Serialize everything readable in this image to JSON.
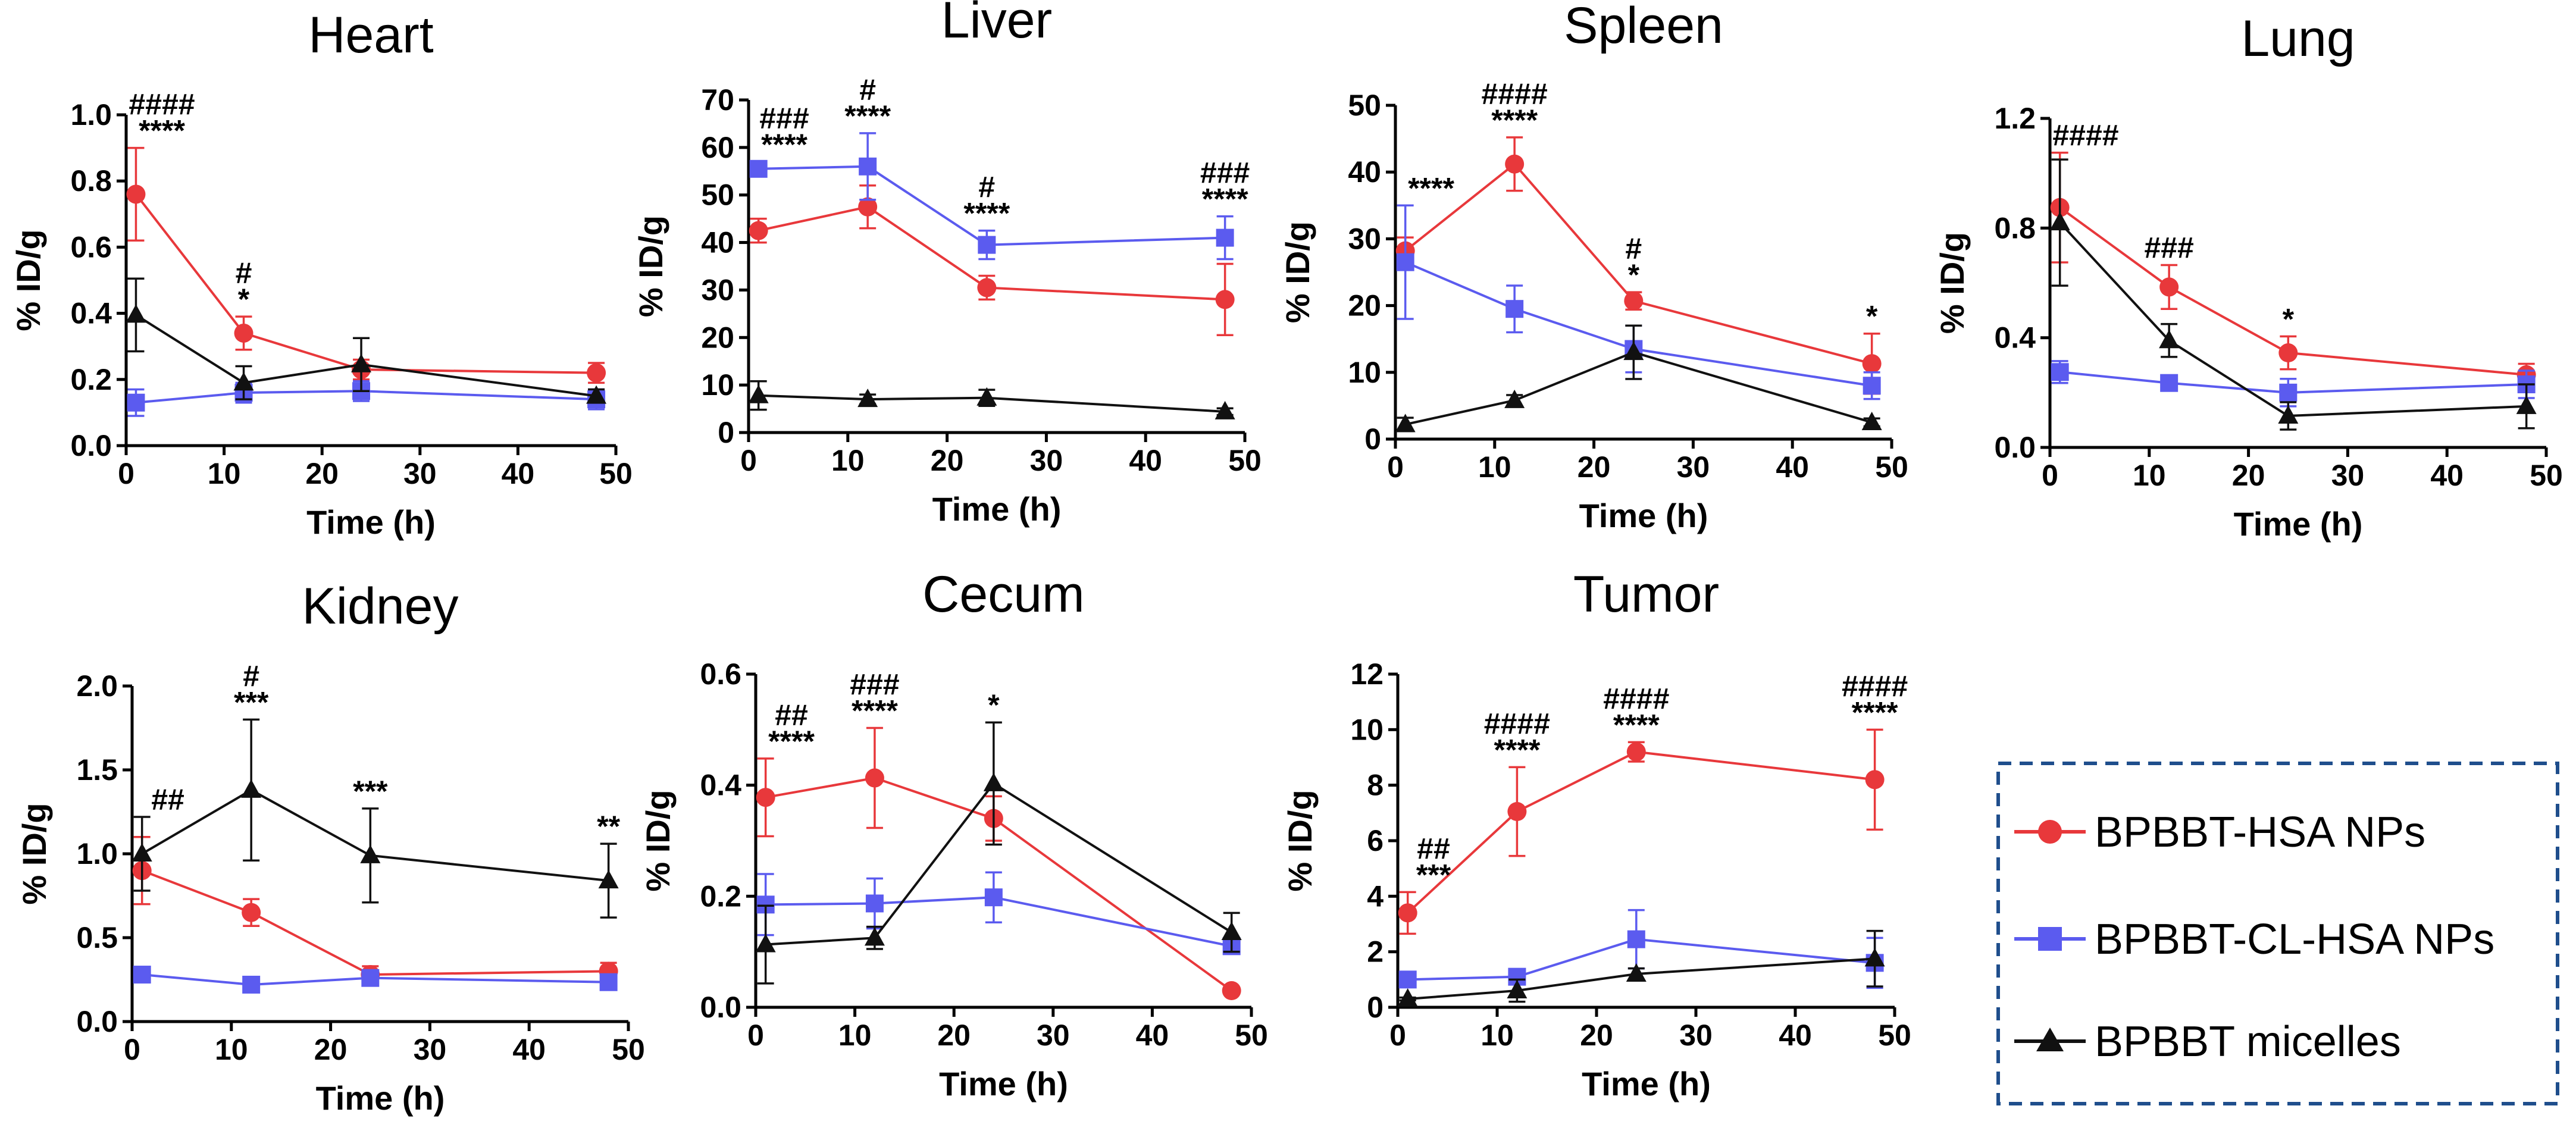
{
  "colors": {
    "red": "#E8383B",
    "blue": "#5B5BEF",
    "black": "#111111",
    "legend_border": "#1F4E8C"
  },
  "legend": [
    {
      "label": "BPBBT-HSA NPs",
      "marker": "circle",
      "color": "#E8383B"
    },
    {
      "label": "BPBBT-CL-HSA NPs",
      "marker": "square",
      "color": "#5B5BEF"
    },
    {
      "label": "BPBBT micelles",
      "marker": "triangle",
      "color": "#111111"
    }
  ],
  "chart_data": [
    {
      "type": "line",
      "title": "Heart",
      "xlabel": "Time (h)",
      "ylabel": "% ID/g",
      "x": [
        1,
        12,
        24,
        48
      ],
      "xlim": [
        0,
        50
      ],
      "ylim": [
        0,
        1.0
      ],
      "xticks": [
        "0",
        "10",
        "20",
        "30",
        "40",
        "50"
      ],
      "yticks": [
        "0.0",
        "0.2",
        "0.4",
        "0.6",
        "0.8",
        "1.0"
      ],
      "series": [
        {
          "name": "BPBBT-HSA NPs",
          "values": [
            0.76,
            0.34,
            0.23,
            0.22
          ],
          "errors": [
            0.14,
            0.05,
            0.03,
            0.03
          ]
        },
        {
          "name": "BPBBT-CL-HSA NPs",
          "values": [
            0.13,
            0.16,
            0.165,
            0.14
          ],
          "errors": [
            0.04,
            0.03,
            0.03,
            0.03
          ]
        },
        {
          "name": "BPBBT micelles",
          "values": [
            0.395,
            0.19,
            0.245,
            0.15
          ],
          "errors": [
            0.11,
            0.05,
            0.08,
            0.02
          ]
        }
      ],
      "annotations": [
        {
          "x": 1,
          "lines": [
            "####",
            "****"
          ]
        },
        {
          "x": 12,
          "lines": [
            "#",
            "*"
          ]
        }
      ]
    },
    {
      "type": "line",
      "title": "Liver",
      "xlabel": "Time (h)",
      "ylabel": "% ID/g",
      "x": [
        1,
        12,
        24,
        48
      ],
      "xlim": [
        0,
        50
      ],
      "ylim": [
        0,
        70
      ],
      "xticks": [
        "0",
        "10",
        "20",
        "30",
        "40",
        "50"
      ],
      "yticks": [
        "0",
        "10",
        "20",
        "30",
        "40",
        "50",
        "60",
        "70"
      ],
      "series": [
        {
          "name": "BPBBT-HSA NPs",
          "values": [
            42.5,
            47.5,
            30.5,
            28
          ],
          "errors": [
            2.5,
            4.5,
            2.5,
            7.5
          ]
        },
        {
          "name": "BPBBT-CL-HSA NPs",
          "values": [
            55.5,
            56,
            39.5,
            41
          ],
          "errors": [
            1.5,
            7,
            3,
            4.5
          ]
        },
        {
          "name": "BPBBT micelles",
          "values": [
            7.8,
            7,
            7.3,
            4.4
          ],
          "errors": [
            3,
            1,
            1.7,
            0.7
          ]
        }
      ],
      "annotations": [
        {
          "x": 1,
          "lines": [
            "###",
            "****"
          ]
        },
        {
          "x": 12,
          "lines": [
            "#",
            "****"
          ]
        },
        {
          "x": 24,
          "lines": [
            "#",
            "****"
          ]
        },
        {
          "x": 48,
          "lines": [
            "###",
            "****"
          ]
        }
      ]
    },
    {
      "type": "line",
      "title": "Spleen",
      "xlabel": "Time (h)",
      "ylabel": "% ID/g",
      "x": [
        1,
        12,
        24,
        48
      ],
      "xlim": [
        0,
        50
      ],
      "ylim": [
        0,
        50
      ],
      "xticks": [
        "0",
        "10",
        "20",
        "30",
        "40",
        "50"
      ],
      "yticks": [
        "0",
        "10",
        "20",
        "30",
        "40",
        "50"
      ],
      "series": [
        {
          "name": "BPBBT-HSA NPs",
          "values": [
            28.2,
            41.2,
            20.7,
            11.3
          ],
          "errors": [
            2,
            4,
            1.3,
            4.5
          ]
        },
        {
          "name": "BPBBT-CL-HSA NPs",
          "values": [
            26.5,
            19.5,
            13.5,
            8
          ],
          "errors": [
            8.5,
            3.5,
            3.5,
            2
          ]
        },
        {
          "name": "BPBBT micelles",
          "values": [
            2.2,
            5.8,
            13,
            2.5
          ],
          "errors": [
            1,
            0.8,
            4,
            0.6
          ]
        }
      ],
      "annotations": [
        {
          "x": 1,
          "lines": [
            "****"
          ]
        },
        {
          "x": 12,
          "lines": [
            "####",
            "****"
          ]
        },
        {
          "x": 24,
          "lines": [
            "#",
            "*"
          ]
        },
        {
          "x": 48,
          "lines": [
            "*"
          ]
        }
      ]
    },
    {
      "type": "line",
      "title": "Lung",
      "xlabel": "Time (h)",
      "ylabel": "% ID/g",
      "x": [
        1,
        12,
        24,
        48
      ],
      "xlim": [
        0,
        50
      ],
      "ylim": [
        0,
        1.2
      ],
      "xticks": [
        "0",
        "10",
        "20",
        "30",
        "40",
        "50"
      ],
      "yticks": [
        "0.0",
        "0.4",
        "0.8",
        "1.2"
      ],
      "series": [
        {
          "name": "BPBBT-HSA NPs",
          "values": [
            0.875,
            0.585,
            0.345,
            0.265
          ],
          "errors": [
            0.2,
            0.08,
            0.06,
            0.04
          ]
        },
        {
          "name": "BPBBT-CL-HSA NPs",
          "values": [
            0.275,
            0.235,
            0.2,
            0.23
          ],
          "errors": [
            0.04,
            0.02,
            0.05,
            0.05
          ]
        },
        {
          "name": "BPBBT micelles",
          "values": [
            0.82,
            0.39,
            0.115,
            0.15
          ],
          "errors": [
            0.23,
            0.06,
            0.05,
            0.08
          ]
        }
      ],
      "annotations": [
        {
          "x": 1,
          "lines": [
            "####"
          ]
        },
        {
          "x": 12,
          "lines": [
            "###"
          ]
        },
        {
          "x": 24,
          "lines": [
            "*"
          ]
        }
      ]
    },
    {
      "type": "line",
      "title": "Kidney",
      "xlabel": "Time (h)",
      "ylabel": "% ID/g",
      "x": [
        1,
        12,
        24,
        48
      ],
      "xlim": [
        0,
        50
      ],
      "ylim": [
        0,
        2.0
      ],
      "xticks": [
        "0",
        "10",
        "20",
        "30",
        "40",
        "50"
      ],
      "yticks": [
        "0.0",
        "0.5",
        "1.0",
        "1.5",
        "2.0"
      ],
      "series": [
        {
          "name": "BPBBT-HSA NPs",
          "values": [
            0.9,
            0.65,
            0.28,
            0.3
          ],
          "errors": [
            0.2,
            0.08,
            0.05,
            0.05
          ]
        },
        {
          "name": "BPBBT-CL-HSA NPs",
          "values": [
            0.28,
            0.22,
            0.26,
            0.235
          ],
          "errors": [
            0.03,
            0.03,
            0.03,
            0.03
          ]
        },
        {
          "name": "BPBBT micelles",
          "values": [
            1.0,
            1.38,
            0.99,
            0.84
          ],
          "errors": [
            0.22,
            0.42,
            0.28,
            0.22
          ]
        }
      ],
      "annotations": [
        {
          "x": 1,
          "lines": [
            "##"
          ]
        },
        {
          "x": 12,
          "lines": [
            "#",
            "***"
          ]
        },
        {
          "x": 24,
          "lines": [
            "***"
          ]
        },
        {
          "x": 48,
          "lines": [
            "**"
          ]
        }
      ]
    },
    {
      "type": "line",
      "title": "Cecum",
      "xlabel": "Time (h)",
      "ylabel": "% ID/g",
      "x": [
        1,
        12,
        24,
        48
      ],
      "xlim": [
        0,
        50
      ],
      "ylim": [
        0,
        0.6
      ],
      "xticks": [
        "0",
        "10",
        "20",
        "30",
        "40",
        "50"
      ],
      "yticks": [
        "0.0",
        "0.2",
        "0.4",
        "0.6"
      ],
      "series": [
        {
          "name": "BPBBT-HSA NPs",
          "values": [
            0.378,
            0.413,
            0.34,
            0.03
          ],
          "errors": [
            0.07,
            0.09,
            0.04,
            0.005
          ]
        },
        {
          "name": "BPBBT-CL-HSA NPs",
          "values": [
            0.185,
            0.187,
            0.198,
            0.11
          ],
          "errors": [
            0.055,
            0.045,
            0.045,
            0.01
          ]
        },
        {
          "name": "BPBBT micelles",
          "values": [
            0.113,
            0.125,
            0.403,
            0.135
          ],
          "errors": [
            0.07,
            0.02,
            0.11,
            0.035
          ]
        }
      ],
      "annotations": [
        {
          "x": 1,
          "lines": [
            "##",
            "****"
          ]
        },
        {
          "x": 12,
          "lines": [
            "###",
            "****"
          ]
        },
        {
          "x": 24,
          "lines": [
            "*"
          ]
        }
      ]
    },
    {
      "type": "line",
      "title": "Tumor",
      "xlabel": "Time (h)",
      "ylabel": "% ID/g",
      "x": [
        1,
        12,
        24,
        48
      ],
      "xlim": [
        0,
        50
      ],
      "ylim": [
        0,
        12
      ],
      "xticks": [
        "0",
        "10",
        "20",
        "30",
        "40",
        "50"
      ],
      "yticks": [
        "0",
        "2",
        "4",
        "6",
        "8",
        "10",
        "12"
      ],
      "series": [
        {
          "name": "BPBBT-HSA NPs",
          "values": [
            3.4,
            7.05,
            9.2,
            8.2
          ],
          "errors": [
            0.75,
            1.6,
            0.35,
            1.8
          ]
        },
        {
          "name": "BPBBT-CL-HSA NPs",
          "values": [
            1.0,
            1.1,
            2.45,
            1.6
          ],
          "errors": [
            0.2,
            0.2,
            1.05,
            0.9
          ]
        },
        {
          "name": "BPBBT micelles",
          "values": [
            0.3,
            0.6,
            1.2,
            1.75
          ],
          "errors": [
            0.05,
            0.4,
            0.2,
            1
          ]
        }
      ],
      "annotations": [
        {
          "x": 1,
          "lines": [
            "##",
            "***"
          ]
        },
        {
          "x": 12,
          "lines": [
            "####",
            "****"
          ]
        },
        {
          "x": 24,
          "lines": [
            "####",
            "****"
          ]
        },
        {
          "x": 48,
          "lines": [
            "####",
            "****"
          ]
        }
      ]
    }
  ]
}
